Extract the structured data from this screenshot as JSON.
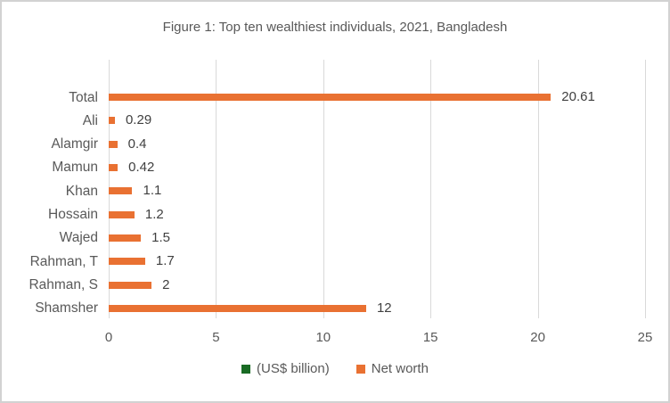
{
  "title": "Figure 1: Top ten wealthiest individuals, 2021, Bangladesh",
  "chart_data": {
    "type": "bar",
    "orientation": "horizontal",
    "title": "Figure 1: Top ten wealthiest individuals, 2021, Bangladesh",
    "categories": [
      "Total",
      "Ali",
      "Alamgir",
      "Mamun",
      "Khan",
      "Hossain",
      "Wajed",
      "Rahman, T",
      "Rahman, S",
      "Shamsher"
    ],
    "series": [
      {
        "name": "(US$ billion)",
        "color": "#196B24",
        "values": []
      },
      {
        "name": "Net worth",
        "color": "#E97132",
        "values": [
          20.61,
          0.29,
          0.4,
          0.42,
          1.1,
          1.2,
          1.5,
          1.7,
          2,
          12
        ]
      }
    ],
    "data_labels": [
      "20.61",
      "0.29",
      "0.4",
      "0.42",
      "1.1",
      "1.2",
      "1.5",
      "1.7",
      "2",
      "12"
    ],
    "xlabel": "",
    "ylabel": "",
    "xlim": [
      0,
      25
    ],
    "xticks": [
      0,
      5,
      10,
      15,
      20,
      25
    ],
    "grid": "vertical-only",
    "legend_position": "bottom-center"
  },
  "colors": {
    "bar_orange": "#E97132",
    "legend_green": "#196B24",
    "gridline": "#D9D9D9",
    "axis_text": "#595959",
    "data_label_text": "#404040",
    "border": "#D2D2D2",
    "background": "#FFFFFF"
  },
  "legend": {
    "items": [
      {
        "label": "(US$ billion)",
        "color": "#196B24"
      },
      {
        "label": "Net worth",
        "color": "#E97132"
      }
    ]
  }
}
